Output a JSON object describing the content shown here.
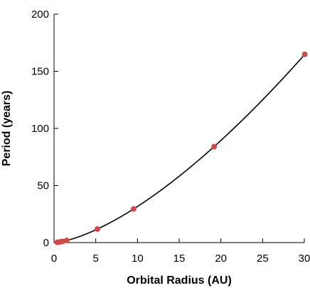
{
  "chart_data": {
    "type": "scatter",
    "title": "",
    "xlabel": "Orbital Radius (AU)",
    "ylabel": "Period (years)",
    "xlim": [
      0,
      30
    ],
    "ylim": [
      0,
      200
    ],
    "xticks": [
      0,
      5,
      10,
      15,
      20,
      25,
      30
    ],
    "yticks": [
      0,
      50,
      100,
      150,
      200
    ],
    "grid": false,
    "legend": "none",
    "series": [
      {
        "kind": "points",
        "color": "#d04a4a",
        "points": [
          {
            "x": 0.39,
            "y": 0.24
          },
          {
            "x": 0.72,
            "y": 0.62
          },
          {
            "x": 1.0,
            "y": 1.0
          },
          {
            "x": 1.52,
            "y": 1.88
          },
          {
            "x": 5.2,
            "y": 11.86
          },
          {
            "x": 9.54,
            "y": 29.46
          },
          {
            "x": 19.19,
            "y": 84.01
          },
          {
            "x": 30.06,
            "y": 164.8
          }
        ]
      },
      {
        "kind": "curve",
        "color": "#000000",
        "equation": "P = a^1.5",
        "x_range": [
          0,
          30.06
        ]
      }
    ]
  }
}
